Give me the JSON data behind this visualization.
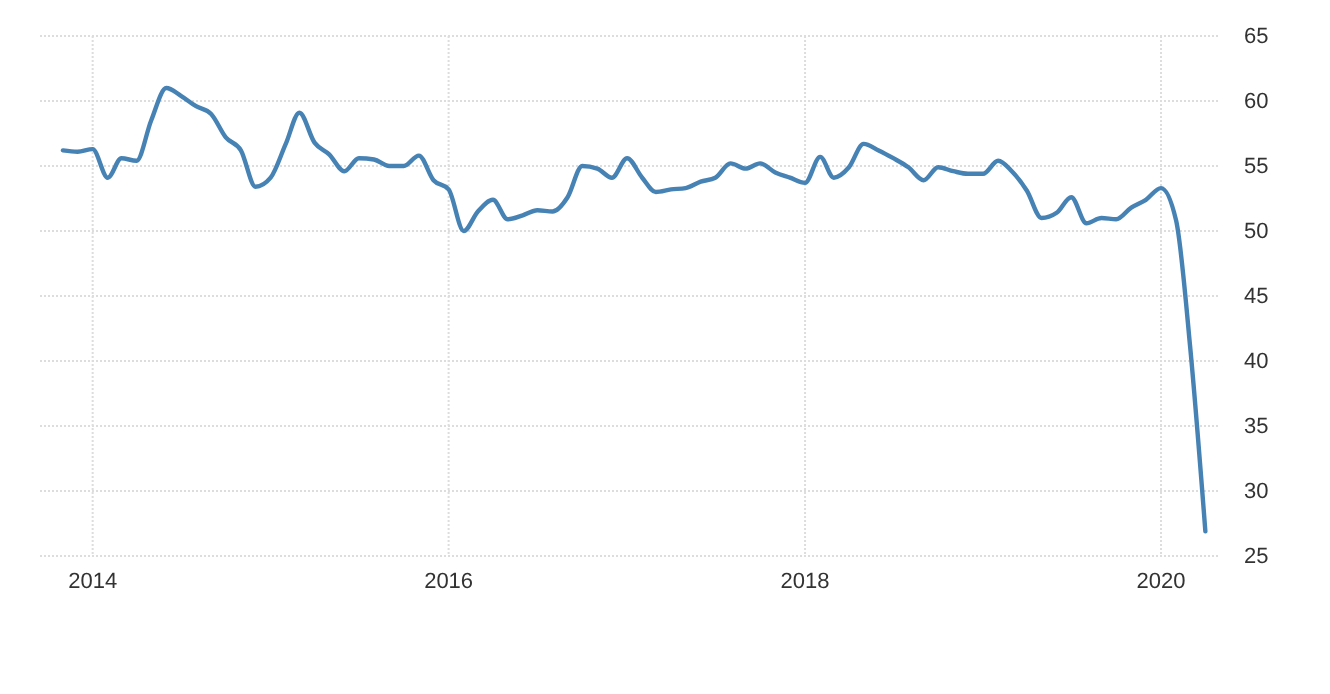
{
  "chart_data": {
    "type": "line",
    "x": [
      "2013-11",
      "2013-12",
      "2014-01",
      "2014-02",
      "2014-03",
      "2014-04",
      "2014-05",
      "2014-06",
      "2014-07",
      "2014-08",
      "2014-09",
      "2014-10",
      "2014-11",
      "2014-12",
      "2015-01",
      "2015-02",
      "2015-03",
      "2015-04",
      "2015-05",
      "2015-06",
      "2015-07",
      "2015-08",
      "2015-09",
      "2015-10",
      "2015-11",
      "2015-12",
      "2016-01",
      "2016-02",
      "2016-03",
      "2016-04",
      "2016-05",
      "2016-06",
      "2016-07",
      "2016-08",
      "2016-09",
      "2016-10",
      "2016-11",
      "2016-12",
      "2017-01",
      "2017-02",
      "2017-03",
      "2017-04",
      "2017-05",
      "2017-06",
      "2017-07",
      "2017-08",
      "2017-09",
      "2017-10",
      "2017-11",
      "2017-12",
      "2018-01",
      "2018-02",
      "2018-03",
      "2018-04",
      "2018-05",
      "2018-06",
      "2018-07",
      "2018-08",
      "2018-09",
      "2018-10",
      "2018-11",
      "2018-12",
      "2019-01",
      "2019-02",
      "2019-03",
      "2019-04",
      "2019-05",
      "2019-06",
      "2019-07",
      "2019-08",
      "2019-09",
      "2019-10",
      "2019-11",
      "2019-12",
      "2020-01",
      "2020-02",
      "2020-03",
      "2020-04"
    ],
    "series": [
      {
        "color": "#4682b4",
        "values": [
          56.2,
          56.1,
          56.3,
          54.1,
          55.6,
          55.4,
          58.5,
          61.0,
          60.4,
          59.6,
          59.0,
          57.2,
          56.2,
          53.4,
          54.1,
          56.7,
          59.1,
          56.8,
          55.9,
          54.6,
          55.6,
          55.5,
          55.0,
          55.0,
          55.8,
          53.9,
          53.2,
          50.0,
          51.5,
          52.4,
          50.9,
          51.2,
          51.6,
          51.5,
          52.6,
          55.0,
          54.8,
          54.1,
          55.6,
          54.1,
          53.0,
          53.2,
          53.3,
          53.8,
          54.1,
          55.2,
          54.8,
          55.2,
          54.5,
          54.1,
          53.7,
          55.7,
          54.1,
          54.9,
          56.7,
          56.2,
          55.6,
          54.9,
          53.9,
          54.9,
          54.6,
          54.4,
          54.4,
          55.4,
          54.6,
          53.1,
          51.0,
          51.4,
          52.6,
          50.6,
          51.0,
          50.9,
          51.8,
          52.4,
          53.3,
          50.8,
          41.0,
          26.9
        ]
      }
    ],
    "xlim": [
      "2013-09-15",
      "2020-05-01"
    ],
    "xticks": [
      {
        "value": "2014-01",
        "label": "2014"
      },
      {
        "value": "2016-01",
        "label": "2016"
      },
      {
        "value": "2018-01",
        "label": "2018"
      },
      {
        "value": "2020-01",
        "label": "2020"
      }
    ],
    "ylim": [
      25,
      65
    ],
    "yticks": [
      25,
      30,
      35,
      40,
      45,
      50,
      55,
      60,
      65
    ],
    "grid": true,
    "marker": "none",
    "line_style": "solid"
  }
}
